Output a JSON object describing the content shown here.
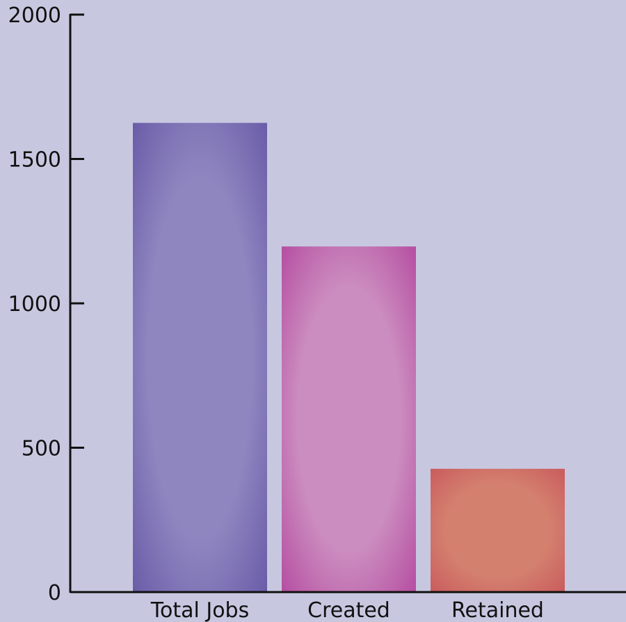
{
  "chart_data": {
    "type": "bar",
    "title": "",
    "xlabel": "",
    "ylabel": "",
    "categories": [
      "Total Jobs",
      "Created",
      "Retained"
    ],
    "values": [
      1625,
      1197,
      427
    ],
    "ylim": [
      0,
      2000
    ],
    "yticks": [
      0,
      500,
      1000,
      1500,
      2000
    ],
    "ytick_labels": [
      "0",
      "500",
      "1000",
      "1500",
      "2000"
    ],
    "grid": false,
    "legend": "none",
    "colors": {
      "background": "#c7c8e0",
      "bars": [
        {
          "edge": "#6b5ca8",
          "center": "#8f86c0"
        },
        {
          "edge": "#b64fa2",
          "center": "#cb8cbf"
        },
        {
          "edge": "#c95c5d",
          "center": "#d4806f"
        }
      ],
      "axis": "#111111"
    }
  }
}
